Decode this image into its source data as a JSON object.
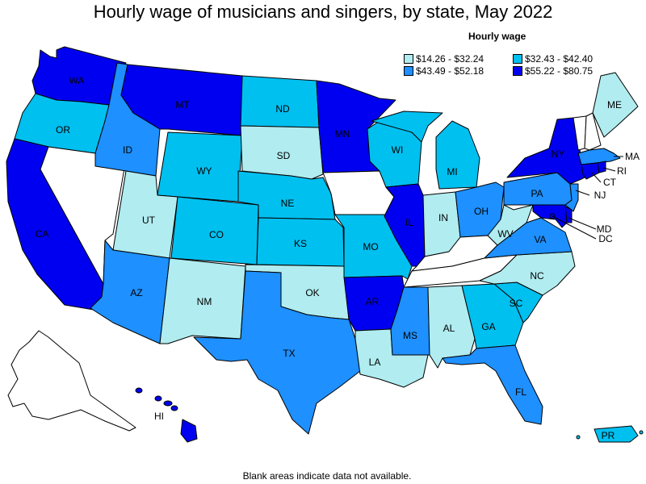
{
  "title": "Hourly wage of musicians and singers, by state, May 2022",
  "legend": {
    "title": "Hourly wage",
    "items": [
      {
        "label": "$14.26 - $32.24",
        "color": "#b0ecf0"
      },
      {
        "label": "$32.43 - $42.40",
        "color": "#00c0f0"
      },
      {
        "label": "$43.49 - $52.18",
        "color": "#1e90ff"
      },
      {
        "label": "$55.22 - $80.75",
        "color": "#0000f0"
      }
    ]
  },
  "footnote": "Blank areas indicate data not available.",
  "colors": {
    "tier1": "#b0ecf0",
    "tier2": "#00c0f0",
    "tier3": "#1e90ff",
    "tier4": "#0000f0",
    "nodata": "#ffffff"
  },
  "states": {
    "WA": {
      "label": "WA",
      "tier": 4
    },
    "OR": {
      "label": "OR",
      "tier": 2
    },
    "CA": {
      "label": "CA",
      "tier": 4
    },
    "ID": {
      "label": "ID",
      "tier": 3
    },
    "NV": {
      "label": "",
      "tier": 0
    },
    "MT": {
      "label": "MT",
      "tier": 4
    },
    "WY": {
      "label": "WY",
      "tier": 2
    },
    "UT": {
      "label": "UT",
      "tier": 1
    },
    "AZ": {
      "label": "AZ",
      "tier": 3
    },
    "CO": {
      "label": "CO",
      "tier": 2
    },
    "NM": {
      "label": "NM",
      "tier": 1
    },
    "ND": {
      "label": "ND",
      "tier": 2
    },
    "SD": {
      "label": "SD",
      "tier": 1
    },
    "NE": {
      "label": "NE",
      "tier": 2
    },
    "KS": {
      "label": "KS",
      "tier": 2
    },
    "OK": {
      "label": "OK",
      "tier": 1
    },
    "TX": {
      "label": "TX",
      "tier": 3
    },
    "MN": {
      "label": "MN",
      "tier": 4
    },
    "IA": {
      "label": "",
      "tier": 0
    },
    "MO": {
      "label": "MO",
      "tier": 2
    },
    "AR": {
      "label": "AR",
      "tier": 4
    },
    "LA": {
      "label": "LA",
      "tier": 1
    },
    "WI": {
      "label": "WI",
      "tier": 2
    },
    "IL": {
      "label": "IL",
      "tier": 4
    },
    "MI": {
      "label": "MI",
      "tier": 2
    },
    "IN": {
      "label": "IN",
      "tier": 1
    },
    "OH": {
      "label": "OH",
      "tier": 3
    },
    "KY": {
      "label": "",
      "tier": 0
    },
    "TN": {
      "label": "",
      "tier": 0
    },
    "MS": {
      "label": "MS",
      "tier": 3
    },
    "AL": {
      "label": "AL",
      "tier": 1
    },
    "GA": {
      "label": "GA",
      "tier": 2
    },
    "FL": {
      "label": "FL",
      "tier": 3
    },
    "SC": {
      "label": "SC",
      "tier": 2
    },
    "NC": {
      "label": "NC",
      "tier": 1
    },
    "VA": {
      "label": "VA",
      "tier": 3
    },
    "WV": {
      "label": "WV",
      "tier": 1
    },
    "PA": {
      "label": "PA",
      "tier": 3
    },
    "NY": {
      "label": "NY",
      "tier": 4
    },
    "VT": {
      "label": "",
      "tier": 0
    },
    "NH": {
      "label": "",
      "tier": 0
    },
    "ME": {
      "label": "ME",
      "tier": 1
    },
    "MA": {
      "label": "MA",
      "tier": 3
    },
    "RI": {
      "label": "RI",
      "tier": 4
    },
    "CT": {
      "label": "CT",
      "tier": 4
    },
    "NJ": {
      "label": "NJ",
      "tier": 3
    },
    "DE": {
      "label": "",
      "tier": 4
    },
    "MD": {
      "label": "MD",
      "tier": 4
    },
    "DC": {
      "label": "DC",
      "tier": 4
    },
    "AK": {
      "label": "",
      "tier": 0
    },
    "HI": {
      "label": "HI",
      "tier": 4
    },
    "PR": {
      "label": "PR",
      "tier": 2
    }
  }
}
